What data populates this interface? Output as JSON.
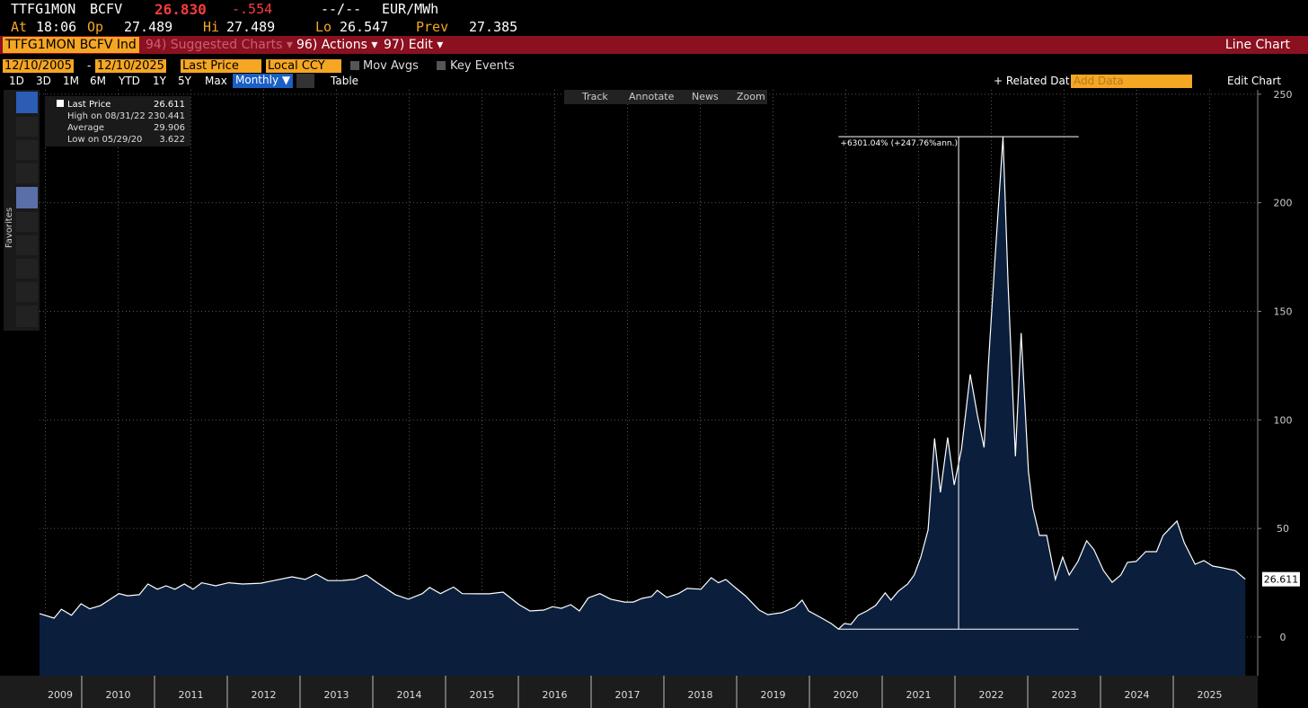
{
  "header": {
    "ticker": "TTFG1MON",
    "source": "BCFV",
    "price": "26.830",
    "change": "-.554",
    "time_status": "--/--",
    "unit": "EUR/MWh",
    "at_label": "At",
    "time": "18:06",
    "open_label": "Op",
    "open": "27.489",
    "high_label": "Hi",
    "high": "27.489",
    "low_label": "Lo",
    "low": "26.547",
    "prev_label": "Prev",
    "prev": "27.385"
  },
  "menu": {
    "security": "TTFG1MON BCFV Ind",
    "suggested": "94) Suggested Charts ▾",
    "actions": "96) Actions ▾",
    "edit": "97) Edit ▾",
    "view": "Line Chart"
  },
  "controls": {
    "start_date": "12/10/2005",
    "date_sep": "-",
    "end_date": "12/10/2025",
    "field": "Last Price",
    "currency": "Local CCY",
    "mov_avgs": "Mov Avgs",
    "key_events": "Key Events"
  },
  "periods": [
    "1D",
    "3D",
    "1M",
    "6M",
    "YTD",
    "1Y",
    "5Y",
    "Max"
  ],
  "frequency": "Monthly ▼",
  "table": "Table",
  "related": "+ Related Dat",
  "add_data": "Add Data",
  "edit_chart": "Edit Chart",
  "chart_tools": [
    "Track",
    "Annotate",
    "News",
    "Zoom"
  ],
  "sidebar": {
    "favorites": "Favorites"
  },
  "chart_data": {
    "type": "line",
    "x": [
      2009.42,
      2009.62,
      2009.72,
      2009.86,
      2009.99,
      2010.11,
      2010.26,
      2010.42,
      2010.51,
      2010.63,
      2010.79,
      2010.91,
      2011.04,
      2011.16,
      2011.28,
      2011.41,
      2011.53,
      2011.65,
      2011.84,
      2012.02,
      2012.21,
      2012.46,
      2012.64,
      2012.89,
      2013.07,
      2013.22,
      2013.38,
      2013.57,
      2013.75,
      2013.91,
      2014.06,
      2014.31,
      2014.49,
      2014.68,
      2014.78,
      2014.93,
      2015.11,
      2015.23,
      2015.42,
      2015.6,
      2015.79,
      2016.01,
      2016.16,
      2016.35,
      2016.47,
      2016.59,
      2016.72,
      2016.84,
      2016.96,
      2017.12,
      2017.27,
      2017.46,
      2017.58,
      2017.7,
      2017.83,
      2017.91,
      2018.04,
      2018.2,
      2018.32,
      2018.51,
      2018.65,
      2018.75,
      2018.85,
      2018.98,
      2019.12,
      2019.31,
      2019.43,
      2019.62,
      2019.8,
      2019.9,
      2019.99,
      2020.17,
      2020.3,
      2020.4,
      2020.48,
      2020.57,
      2020.67,
      2020.79,
      2020.91,
      2021.04,
      2021.12,
      2021.22,
      2021.35,
      2021.44,
      2021.53,
      2021.63,
      2021.72,
      2021.8,
      2021.9,
      2021.99,
      2022.09,
      2022.21,
      2022.31,
      2022.4,
      2022.46,
      2022.54,
      2022.66,
      2022.73,
      2022.83,
      2022.91,
      2023.01,
      2023.07,
      2023.16,
      2023.26,
      2023.38,
      2023.48,
      2023.57,
      2023.69,
      2023.81,
      2023.91,
      2024.04,
      2024.16,
      2024.28,
      2024.37,
      2024.49,
      2024.62,
      2024.77,
      2024.86,
      2025.05,
      2025.15,
      2025.3,
      2025.42,
      2025.54,
      2025.67,
      2025.85,
      2025.99
    ],
    "series": [
      {
        "name": "Last Price",
        "color": "#ffffff",
        "values": [
          10.8,
          8.7,
          12.8,
          10,
          15.3,
          13,
          14.5,
          18,
          20,
          19,
          19.5,
          24.4,
          22,
          23.6,
          22,
          24.4,
          22,
          25,
          23.6,
          25,
          24.4,
          24.8,
          26,
          27.7,
          26.5,
          29,
          26,
          26,
          26.5,
          28.6,
          25,
          19.5,
          17.4,
          20,
          22.8,
          20,
          23,
          20,
          19.9,
          19.9,
          20.7,
          14.9,
          12,
          12.4,
          14,
          13.2,
          14.9,
          12,
          18,
          20,
          17.4,
          16.1,
          16.1,
          17.8,
          18.6,
          21.5,
          18.2,
          20,
          22.4,
          22,
          27.3,
          25,
          26.5,
          22.8,
          19,
          12.4,
          10.3,
          11.2,
          13.7,
          17,
          12,
          8.7,
          6.2,
          3.622,
          6.2,
          5.8,
          10,
          12,
          14.5,
          20.3,
          17,
          21,
          24.4,
          28.6,
          36.8,
          49.3,
          91.5,
          66.6,
          91.9,
          70,
          86.5,
          121,
          102,
          87.3,
          126,
          169,
          230.441,
          162,
          83.2,
          140,
          76.2,
          59.6,
          46.8,
          46.8,
          26.5,
          36.8,
          28.6,
          34.8,
          44.3,
          40.2,
          30.6,
          25.2,
          28.6,
          34.4,
          34.8,
          39.3,
          39.3,
          46.8,
          53.4,
          43.5,
          33.5,
          35.2,
          32.7,
          31.9,
          30.6,
          26.611
        ]
      }
    ],
    "fill_color": "#0b1f3d",
    "xlim": [
      2009.42,
      2026.16
    ],
    "xticks": [
      {
        "value": 2009.5,
        "label": "2009"
      },
      {
        "value": 2010.5,
        "label": "2010"
      },
      {
        "value": 2011.5,
        "label": "2011"
      },
      {
        "value": 2012.5,
        "label": "2012"
      },
      {
        "value": 2013.5,
        "label": "2013"
      },
      {
        "value": 2014.5,
        "label": "2014"
      },
      {
        "value": 2015.5,
        "label": "2015"
      },
      {
        "value": 2016.5,
        "label": "2016"
      },
      {
        "value": 2017.5,
        "label": "2017"
      },
      {
        "value": 2018.5,
        "label": "2018"
      },
      {
        "value": 2019.5,
        "label": "2019"
      },
      {
        "value": 2020.5,
        "label": "2020"
      },
      {
        "value": 2021.5,
        "label": "2021"
      },
      {
        "value": 2022.5,
        "label": "2022"
      },
      {
        "value": 2023.5,
        "label": "2023"
      },
      {
        "value": 2024.5,
        "label": "2024"
      },
      {
        "value": 2025.5,
        "label": "2025"
      }
    ],
    "ylim": [
      -17.8,
      252
    ],
    "yticks": [
      0,
      50,
      100,
      150,
      200,
      250
    ],
    "grid": true,
    "stats": [
      {
        "label": "High on 08/31/22",
        "value": 230.441
      },
      {
        "label": "Average",
        "value": 29.906
      },
      {
        "label": "Low on 05/29/20",
        "value": 3.622
      }
    ],
    "annotation": {
      "text": "+6301.04% (+247.76%ann.)",
      "x": [
        2020.4,
        2023.7
      ]
    }
  }
}
